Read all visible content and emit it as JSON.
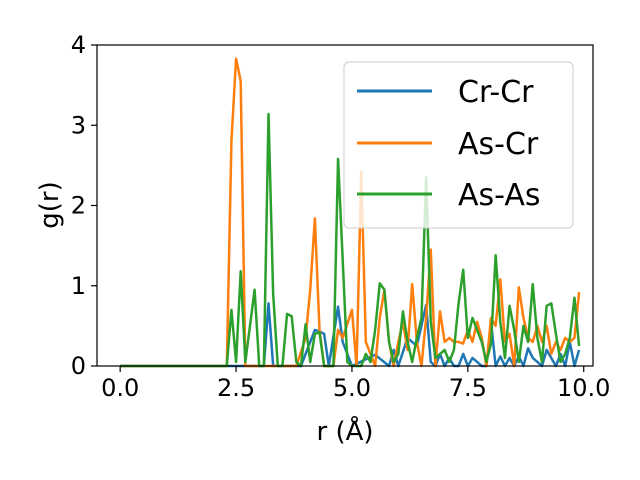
{
  "chart_data": {
    "type": "line",
    "title": "",
    "xlabel": "r (Å)",
    "ylabel": "g(r)",
    "xlim": [
      -0.5,
      10.2
    ],
    "ylim": [
      0,
      4
    ],
    "xticks": [
      0.0,
      2.5,
      5.0,
      7.5,
      10.0
    ],
    "xtick_labels": [
      "0.0",
      "2.5",
      "5.0",
      "7.5",
      "10.0"
    ],
    "yticks": [
      0,
      1,
      2,
      3,
      4
    ],
    "ytick_labels": [
      "0",
      "1",
      "2",
      "3",
      "4"
    ],
    "grid": false,
    "legend": "top-right",
    "series": [
      {
        "name": "Cr-Cr",
        "color": "#1f77b4",
        "x": [
          0,
          2.2,
          3.1,
          3.2,
          3.3,
          3.9,
          4.2,
          4.3,
          4.4,
          4.5,
          4.7,
          4.8,
          5.0,
          5.5,
          5.8,
          5.9,
          6.0,
          6.2,
          6.4,
          6.6,
          6.7,
          6.8,
          6.9,
          7.0,
          7.1,
          7.2,
          7.3,
          7.4,
          7.5,
          7.6,
          7.7,
          7.8,
          7.9,
          8.0,
          8.1,
          8.2,
          8.3,
          8.4,
          8.5,
          8.6,
          8.7,
          8.8,
          8.9,
          9.0,
          9.1,
          9.2,
          9.3,
          9.4,
          9.5,
          9.6,
          9.7,
          9.8,
          9.9
        ],
        "y": [
          0,
          0,
          0,
          0.78,
          0,
          0,
          0.45,
          0.43,
          0.4,
          0,
          0.74,
          0.3,
          0,
          0.14,
          0,
          0.2,
          0,
          0.35,
          0.25,
          0.76,
          0.05,
          0,
          0.15,
          0,
          0.1,
          0,
          0,
          0.15,
          0,
          0.1,
          0.05,
          0,
          0,
          0.55,
          0,
          0.12,
          0,
          0.1,
          0,
          0.12,
          0,
          0.22,
          0.1,
          0.05,
          0,
          0.2,
          0.1,
          0,
          0.15,
          0,
          0.3,
          0,
          0.2
        ]
      },
      {
        "name": "As-Cr",
        "color": "#ff7f0e",
        "x": [
          0,
          2.3,
          2.4,
          2.5,
          2.6,
          2.7,
          2.8,
          3.8,
          4.0,
          4.1,
          4.2,
          4.3,
          4.4,
          4.6,
          4.7,
          4.8,
          5.0,
          5.1,
          5.2,
          5.3,
          5.5,
          5.6,
          5.7,
          5.8,
          5.9,
          6.0,
          6.1,
          6.2,
          6.3,
          6.4,
          6.5,
          6.6,
          6.7,
          6.8,
          6.9,
          7.0,
          7.1,
          7.2,
          7.3,
          7.4,
          7.5,
          7.6,
          7.7,
          7.8,
          7.9,
          8.0,
          8.1,
          8.2,
          8.3,
          8.4,
          8.5,
          8.6,
          8.7,
          8.8,
          8.9,
          9.0,
          9.1,
          9.2,
          9.3,
          9.4,
          9.5,
          9.6,
          9.7,
          9.8,
          9.9
        ],
        "y": [
          0,
          0,
          2.8,
          3.83,
          3.55,
          0,
          0,
          0,
          0.35,
          0.95,
          1.84,
          0.45,
          0,
          0,
          0.45,
          0.35,
          0.7,
          0,
          2.42,
          0.3,
          0,
          0.6,
          0.95,
          0.3,
          0,
          0.3,
          0.55,
          0.2,
          1.02,
          0.3,
          0,
          0.6,
          1.45,
          0,
          0.68,
          0.3,
          0.35,
          0.3,
          0.3,
          0.28,
          0.45,
          0.3,
          0.55,
          0.35,
          0,
          0.6,
          0.5,
          1.08,
          0.3,
          0.4,
          0,
          0.98,
          0.6,
          0.35,
          0.3,
          0.5,
          0.3,
          0.5,
          0.15,
          0.3,
          0.2,
          0.35,
          0.3,
          0.35,
          0.92
        ]
      },
      {
        "name": "As-As",
        "color": "#2ca02c",
        "x": [
          0,
          2.2,
          2.3,
          2.4,
          2.5,
          2.6,
          2.7,
          2.8,
          2.9,
          3.0,
          3.1,
          3.2,
          3.3,
          3.4,
          3.5,
          3.6,
          3.7,
          3.8,
          3.9,
          4.0,
          4.1,
          4.2,
          4.3,
          4.4,
          4.5,
          4.6,
          4.7,
          4.8,
          4.9,
          5.0,
          5.1,
          5.2,
          5.3,
          5.4,
          5.5,
          5.6,
          5.7,
          5.8,
          5.9,
          6.0,
          6.1,
          6.2,
          6.3,
          6.4,
          6.5,
          6.6,
          6.7,
          6.8,
          6.9,
          7.0,
          7.1,
          7.2,
          7.3,
          7.4,
          7.5,
          7.6,
          7.7,
          7.8,
          7.9,
          8.0,
          8.1,
          8.2,
          8.3,
          8.4,
          8.5,
          8.6,
          8.7,
          8.8,
          8.9,
          9.0,
          9.1,
          9.2,
          9.3,
          9.4,
          9.5,
          9.6,
          9.7,
          9.8,
          9.9
        ],
        "y": [
          0,
          0,
          0,
          0.7,
          0.05,
          1.18,
          0.05,
          0.5,
          0.95,
          0,
          0,
          3.14,
          0.9,
          0,
          0,
          0.65,
          0.62,
          0.05,
          0,
          0.52,
          0.05,
          0.4,
          0.42,
          0,
          0,
          0,
          2.58,
          1.33,
          0.05,
          0,
          0,
          0,
          0.15,
          0.05,
          0.45,
          1.03,
          0.95,
          0.3,
          0.05,
          0.15,
          0.68,
          0.3,
          0.05,
          0.35,
          0.6,
          2.35,
          0.55,
          0.1,
          0.15,
          0.2,
          0.05,
          0.2,
          0.78,
          1.2,
          0.35,
          0.6,
          0.45,
          0.3,
          0.05,
          0.28,
          1.38,
          0.55,
          0.1,
          0.75,
          0.45,
          0.05,
          0.5,
          0.3,
          1.02,
          0.35,
          0.05,
          0.75,
          0.78,
          0.4,
          0.05,
          0.15,
          0.35,
          0.85,
          0.25
        ]
      }
    ]
  }
}
